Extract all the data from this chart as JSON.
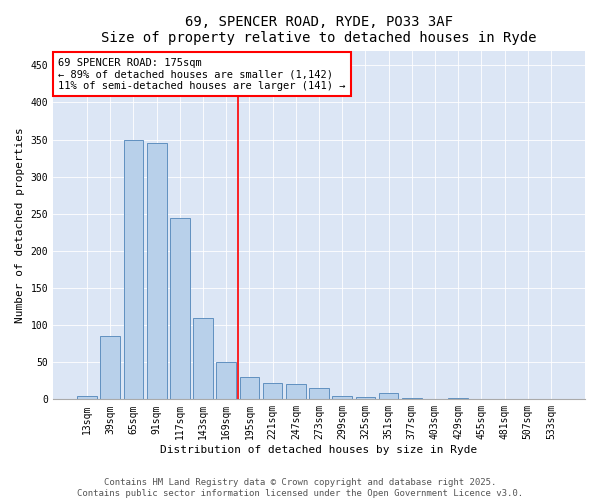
{
  "title1": "69, SPENCER ROAD, RYDE, PO33 3AF",
  "title2": "Size of property relative to detached houses in Ryde",
  "xlabel": "Distribution of detached houses by size in Ryde",
  "ylabel": "Number of detached properties",
  "categories": [
    "13sqm",
    "39sqm",
    "65sqm",
    "91sqm",
    "117sqm",
    "143sqm",
    "169sqm",
    "195sqm",
    "221sqm",
    "247sqm",
    "273sqm",
    "299sqm",
    "325sqm",
    "351sqm",
    "377sqm",
    "403sqm",
    "429sqm",
    "455sqm",
    "481sqm",
    "507sqm",
    "533sqm"
  ],
  "values": [
    5,
    85,
    350,
    345,
    245,
    110,
    50,
    30,
    22,
    20,
    15,
    5,
    3,
    8,
    2,
    0,
    2,
    0,
    1,
    0,
    0
  ],
  "bar_color": "#b8d0ea",
  "bar_edge_color": "#6090c0",
  "vline_x": 6.5,
  "annotation_text": "69 SPENCER ROAD: 175sqm\n← 89% of detached houses are smaller (1,142)\n11% of semi-detached houses are larger (141) →",
  "annotation_box_color": "white",
  "annotation_box_edge_color": "red",
  "vline_color": "red",
  "ylim": [
    0,
    470
  ],
  "yticks": [
    0,
    50,
    100,
    150,
    200,
    250,
    300,
    350,
    400,
    450
  ],
  "bg_color": "#dce6f5",
  "footnote": "Contains HM Land Registry data © Crown copyright and database right 2025.\nContains public sector information licensed under the Open Government Licence v3.0.",
  "title_fontsize": 10,
  "axis_label_fontsize": 8,
  "tick_fontsize": 7,
  "annotation_fontsize": 7.5,
  "footnote_fontsize": 6.5
}
